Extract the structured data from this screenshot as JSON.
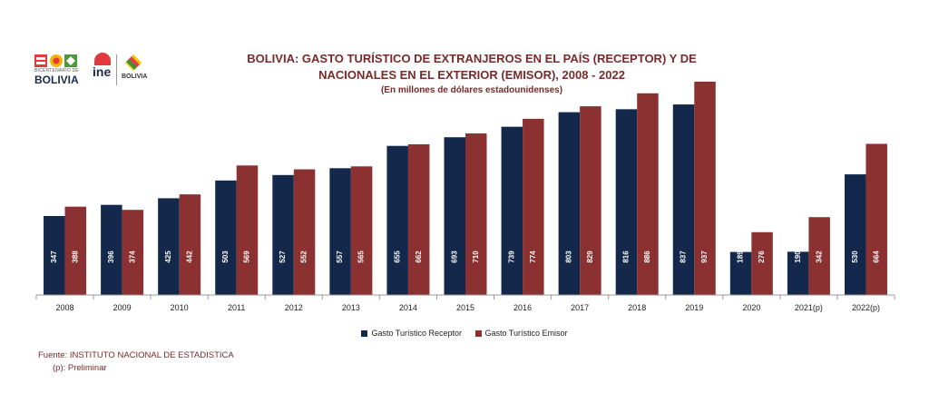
{
  "logos": {
    "bicentenario_line1": "BICENTENARIO DE",
    "bicentenario_line2": "BOLIVIA",
    "ine_label": "ine",
    "escudo_label": "BOLIVIA"
  },
  "title": {
    "line1": "BOLIVIA: GASTO TURÍSTICO DE EXTRANJEROS EN EL PAÍS (RECEPTOR) Y DE",
    "line2": "NACIONALES EN EL EXTERIOR (EMISOR), 2008 - 2022",
    "subtitle": "(En millones de dólares estadounidenses)"
  },
  "chart_data": {
    "type": "bar",
    "title": "BOLIVIA: GASTO TURÍSTICO DE EXTRANJEROS EN EL PAÍS (RECEPTOR) Y DE NACIONALES EN EL EXTERIOR (EMISOR), 2008 - 2022",
    "subtitle": "(En millones de dólares estadounidenses)",
    "categories": [
      "2008",
      "2009",
      "2010",
      "2011",
      "2012",
      "2013",
      "2014",
      "2015",
      "2016",
      "2017",
      "2018",
      "2019",
      "2020",
      "2021(p)",
      "2022(p)"
    ],
    "series": [
      {
        "name": "Gasto Turístico Receptor",
        "color": "#13284b",
        "values": [
          347,
          396,
          425,
          503,
          527,
          557,
          655,
          693,
          739,
          803,
          816,
          837,
          189,
          190,
          530
        ]
      },
      {
        "name": "Gasto Turístico Emisor",
        "color": "#8b3131",
        "values": [
          388,
          374,
          442,
          569,
          552,
          565,
          662,
          710,
          774,
          829,
          886,
          937,
          276,
          342,
          664
        ]
      }
    ],
    "ylim": [
      0,
      937
    ],
    "grid": false,
    "legend_position": "bottom"
  },
  "source": {
    "fuente": "Fuente: INSTITUTO NACIONAL DE ESTADISTICA",
    "nota": "(p): Preliminar"
  }
}
